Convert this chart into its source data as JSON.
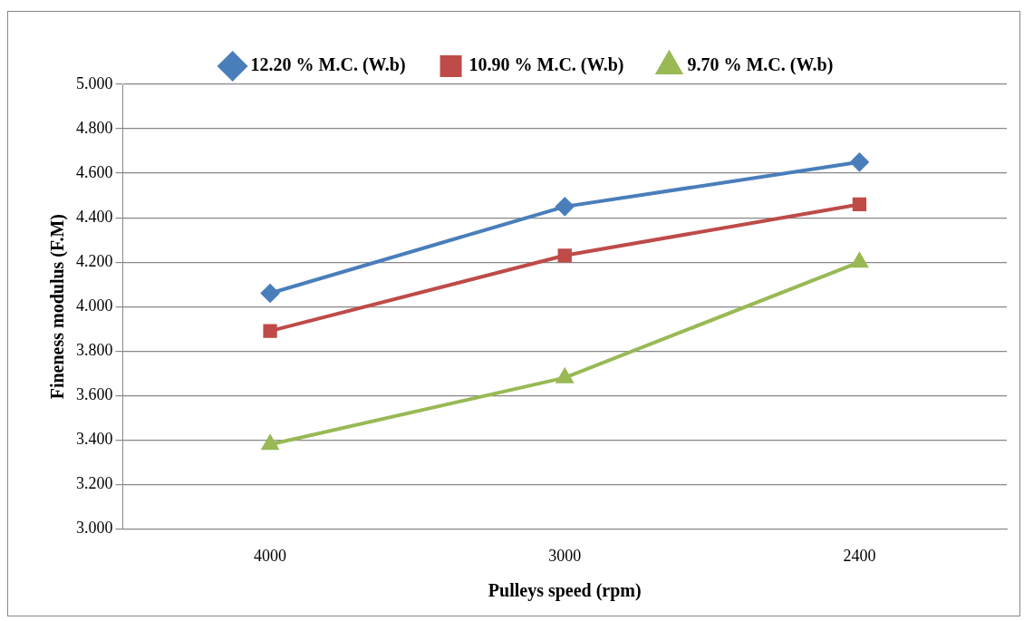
{
  "chart_data": {
    "type": "line",
    "xlabel": "Pulleys speed (rpm)",
    "ylabel": "Fineness modulus (F.M)",
    "categories": [
      "4000",
      "3000",
      "2400"
    ],
    "series": [
      {
        "name": "12.20 % M.C. (W.b)",
        "color": "#4a7ebb",
        "marker": "diamond",
        "values": [
          4.06,
          4.45,
          4.65
        ]
      },
      {
        "name": "10.90 % M.C. (W.b)",
        "color": "#be4b48",
        "marker": "square",
        "values": [
          3.89,
          4.23,
          4.46
        ]
      },
      {
        "name": "9.70 % M.C. (W.b)",
        "color": "#98b954",
        "marker": "triangle",
        "values": [
          3.38,
          3.68,
          4.2
        ]
      }
    ],
    "ylim": [
      3,
      5
    ],
    "yticks": [
      {
        "value": 3,
        "label": "3.000"
      },
      {
        "value": 3.2,
        "label": "3.200"
      },
      {
        "value": 3.4,
        "label": "3.400"
      },
      {
        "value": 3.6,
        "label": "3.600"
      },
      {
        "value": 3.8,
        "label": "3.800"
      },
      {
        "value": 4,
        "label": "4.000"
      },
      {
        "value": 4.2,
        "label": "4.200"
      },
      {
        "value": 4.4,
        "label": "4.400"
      },
      {
        "value": 4.6,
        "label": "4.600"
      },
      {
        "value": 4.8,
        "label": "4.800"
      },
      {
        "value": 5,
        "label": "5.000"
      }
    ],
    "grid": "y",
    "legend": "top",
    "line_style": "solid"
  }
}
